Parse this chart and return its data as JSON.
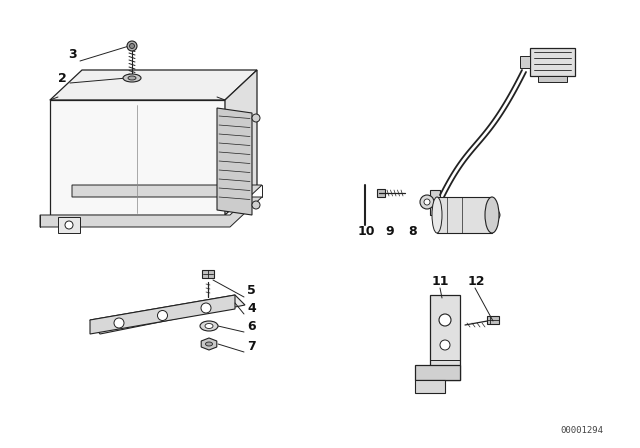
{
  "background_color": "#ffffff",
  "line_color": "#222222",
  "diagram_code": "00001294",
  "fig_width": 6.4,
  "fig_height": 4.48,
  "dpi": 100,
  "label_fontsize": 9,
  "code_fontsize": 6.5
}
